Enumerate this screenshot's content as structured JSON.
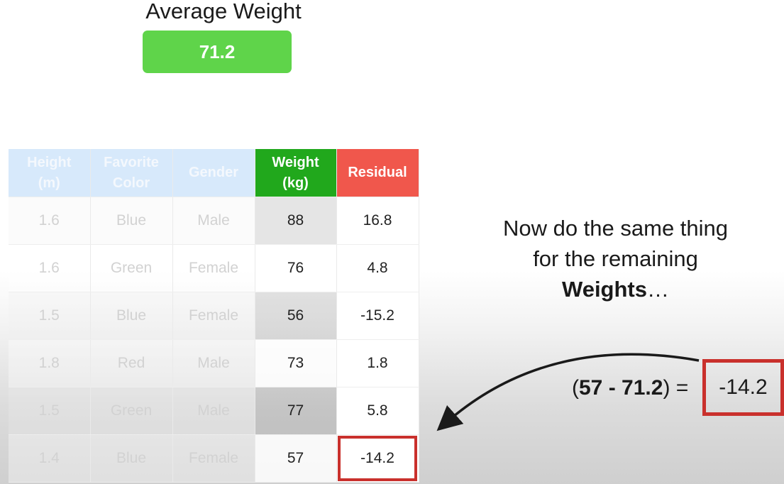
{
  "average": {
    "title": "Average Weight",
    "value": "71.2"
  },
  "table": {
    "headers": {
      "height": [
        "Height",
        "(m)"
      ],
      "color": [
        "Favorite",
        "Color"
      ],
      "gender": "Gender",
      "weight": [
        "Weight",
        "(kg)"
      ],
      "residual": "Residual"
    },
    "rows": [
      {
        "height": "1.6",
        "color": "Blue",
        "gender": "Male",
        "weight": "88",
        "residual": "16.8"
      },
      {
        "height": "1.6",
        "color": "Green",
        "gender": "Female",
        "weight": "76",
        "residual": "4.8"
      },
      {
        "height": "1.5",
        "color": "Blue",
        "gender": "Female",
        "weight": "56",
        "residual": "-15.2"
      },
      {
        "height": "1.8",
        "color": "Red",
        "gender": "Male",
        "weight": "73",
        "residual": "1.8"
      },
      {
        "height": "1.5",
        "color": "Green",
        "gender": "Male",
        "weight": "77",
        "residual": "5.8"
      },
      {
        "height": "1.4",
        "color": "Blue",
        "gender": "Female",
        "weight": "57",
        "residual": "-14.2"
      }
    ]
  },
  "instruction": {
    "line1": "Now do the same thing",
    "line2": "for the remaining",
    "bold_word": "Weights",
    "ellipsis": "…"
  },
  "equation": {
    "open": "(",
    "weight": "57",
    "minus": " - ",
    "average": "71.2",
    "close": ")",
    "equals": " = ",
    "result": "-14.2"
  },
  "colors": {
    "average_box": "#5fd44a",
    "weight_header": "#21a81c",
    "residual_header": "#f0574c",
    "highlight_border": "#c9302c"
  }
}
